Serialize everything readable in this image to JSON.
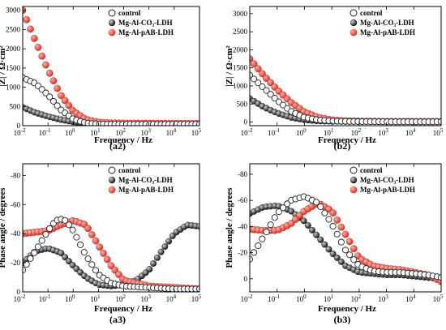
{
  "chart_data": [
    {
      "id": "a2",
      "type": "scatter",
      "panel_label": "(a2)",
      "xlabel": "Frequency / Hz",
      "ylabel": "|Z| / Ω·cm²",
      "x_scale": "log",
      "xlim": [
        0.01,
        100000
      ],
      "ylim": [
        0,
        3100
      ],
      "xticks": [
        {
          "v": 0.01,
          "b": "10",
          "e": "-2"
        },
        {
          "v": 0.1,
          "b": "10",
          "e": "-1"
        },
        {
          "v": 1,
          "b": "10",
          "e": "0"
        },
        {
          "v": 10,
          "b": "10",
          "e": "1"
        },
        {
          "v": 100,
          "b": "10",
          "e": "2"
        },
        {
          "v": 1000,
          "b": "10",
          "e": "3"
        },
        {
          "v": 10000,
          "b": "10",
          "e": "4"
        },
        {
          "v": 100000,
          "b": "10",
          "e": "5"
        }
      ],
      "yticks": [
        {
          "v": 0,
          "l": "0"
        },
        {
          "v": 500,
          "l": "500"
        },
        {
          "v": 1000,
          "l": "1000"
        },
        {
          "v": 1500,
          "l": "1500"
        },
        {
          "v": 2000,
          "l": "2000"
        },
        {
          "v": 2500,
          "l": "2500"
        },
        {
          "v": 3000,
          "l": "3000"
        }
      ],
      "legend": "top-right",
      "series": [
        {
          "name": "control",
          "style": "open",
          "x_log": [
            -2,
            -1.5,
            -1,
            -0.5,
            0,
            0.5,
            1,
            1.5,
            2,
            3,
            4,
            5
          ],
          "y": [
            1250,
            1100,
            800,
            420,
            170,
            70,
            45,
            40,
            38,
            38,
            38,
            38
          ]
        },
        {
          "name": "Mg-Al-CO₃-LDH",
          "style": "black",
          "x_log": [
            -2,
            -1.5,
            -1,
            -0.5,
            0,
            0.5,
            1,
            1.5,
            2,
            3,
            4,
            5
          ],
          "y": [
            480,
            340,
            240,
            160,
            100,
            60,
            45,
            40,
            38,
            38,
            38,
            38
          ]
        },
        {
          "name": "Mg-Al-pAB-LDH",
          "style": "red",
          "x_log": [
            -2,
            -1.5,
            -1,
            -0.5,
            0,
            0.5,
            1,
            1.5,
            2,
            3,
            4,
            5
          ],
          "y": [
            3000,
            2200,
            1450,
            800,
            380,
            160,
            90,
            70,
            65,
            62,
            60,
            60
          ]
        }
      ]
    },
    {
      "id": "b2",
      "type": "scatter",
      "panel_label": "(b2)",
      "xlabel": "Frequency / Hz",
      "ylabel": "|Z| / Ω·cm²",
      "x_scale": "log",
      "xlim": [
        0.01,
        100000
      ],
      "ylim": [
        -100,
        3200
      ],
      "xticks": [
        {
          "v": 0.01,
          "b": "10",
          "e": "-2"
        },
        {
          "v": 0.1,
          "b": "10",
          "e": "-1"
        },
        {
          "v": 1,
          "b": "10",
          "e": "0"
        },
        {
          "v": 10,
          "b": "10",
          "e": "1"
        },
        {
          "v": 100,
          "b": "10",
          "e": "2"
        },
        {
          "v": 1000,
          "b": "10",
          "e": "3"
        },
        {
          "v": 10000,
          "b": "10",
          "e": "4"
        },
        {
          "v": 100000,
          "b": "10",
          "e": "5"
        }
      ],
      "yticks": [
        {
          "v": 0,
          "l": "0"
        },
        {
          "v": 500,
          "l": "500"
        },
        {
          "v": 1000,
          "l": "1000"
        },
        {
          "v": 1500,
          "l": "1500"
        },
        {
          "v": 2000,
          "l": "2000"
        },
        {
          "v": 2500,
          "l": "2500"
        },
        {
          "v": 3000,
          "l": "3000"
        }
      ],
      "legend": "top-right",
      "series": [
        {
          "name": "control",
          "style": "open",
          "x_log": [
            -2,
            -1.5,
            -1,
            -0.5,
            0,
            0.5,
            1,
            1.5,
            2,
            3,
            4,
            5
          ],
          "y": [
            1300,
            950,
            600,
            300,
            130,
            60,
            30,
            20,
            15,
            10,
            10,
            10
          ]
        },
        {
          "name": "Mg-Al-CO₃-LDH",
          "style": "black",
          "x_log": [
            -2,
            -1.5,
            -1,
            -0.5,
            0,
            0.5,
            1,
            1.5,
            2,
            3,
            4,
            5
          ],
          "y": [
            650,
            420,
            250,
            130,
            60,
            30,
            20,
            15,
            12,
            10,
            10,
            10
          ]
        },
        {
          "name": "Mg-Al-pAB-LDH",
          "style": "red",
          "x_log": [
            -2,
            -1.5,
            -1,
            -0.5,
            0,
            0.5,
            1,
            1.5,
            2,
            3,
            4,
            5
          ],
          "y": [
            1750,
            1300,
            900,
            550,
            280,
            130,
            60,
            35,
            25,
            15,
            12,
            12
          ]
        }
      ]
    },
    {
      "id": "a3",
      "type": "scatter",
      "panel_label": "(a3)",
      "xlabel": "Frequency / Hz",
      "ylabel": "Phase angle / degrees",
      "x_scale": "log",
      "xlim": [
        0.01,
        100000
      ],
      "ylim": [
        0,
        -88
      ],
      "xticks": [
        {
          "v": 0.01,
          "b": "10",
          "e": "-2"
        },
        {
          "v": 0.1,
          "b": "10",
          "e": "-1"
        },
        {
          "v": 1,
          "b": "10",
          "e": "0"
        },
        {
          "v": 10,
          "b": "10",
          "e": "1"
        },
        {
          "v": 100,
          "b": "10",
          "e": "2"
        },
        {
          "v": 1000,
          "b": "10",
          "e": "3"
        },
        {
          "v": 10000,
          "b": "10",
          "e": "4"
        },
        {
          "v": 100000,
          "b": "10",
          "e": "5"
        }
      ],
      "yticks": [
        {
          "v": 0,
          "l": "0"
        },
        {
          "v": -20,
          "l": "-20"
        },
        {
          "v": -40,
          "l": "-40"
        },
        {
          "v": -60,
          "l": "-60"
        },
        {
          "v": -80,
          "l": "-80"
        }
      ],
      "legend": "top-right",
      "series": [
        {
          "name": "control",
          "style": "open",
          "x_log": [
            -2,
            -1.5,
            -1,
            -0.7,
            -0.5,
            -0.3,
            0,
            0.5,
            1,
            1.5,
            2,
            3,
            4,
            5
          ],
          "y": [
            -15,
            -28,
            -42,
            -49,
            -50,
            -49,
            -42,
            -25,
            -12,
            -6,
            -4,
            -3,
            -2,
            -2
          ]
        },
        {
          "name": "Mg-Al-CO₃-LDH",
          "style": "black",
          "x_log": [
            -2,
            -1.5,
            -1,
            -0.5,
            0,
            0.5,
            1,
            1.5,
            2,
            2.5,
            3,
            3.5,
            4,
            4.5,
            5
          ],
          "y": [
            -20,
            -28,
            -30,
            -27,
            -18,
            -10,
            -5,
            -4,
            -5,
            -8,
            -15,
            -28,
            -40,
            -46,
            -45
          ]
        },
        {
          "name": "Mg-Al-pAB-LDH",
          "style": "red",
          "x_log": [
            -2,
            -1.5,
            -1,
            -0.5,
            0,
            0.5,
            1,
            1.5,
            2,
            3,
            4,
            5
          ],
          "y": [
            -40,
            -41,
            -42,
            -46,
            -49,
            -46,
            -32,
            -18,
            -8,
            -4,
            -3,
            -2
          ]
        }
      ]
    },
    {
      "id": "b3",
      "type": "scatter",
      "panel_label": "(b3)",
      "xlabel": "Frequency / Hz",
      "ylabel": "Phase angle / degrees",
      "x_scale": "log",
      "xlim": [
        0.01,
        100000
      ],
      "ylim": [
        10,
        -88
      ],
      "xticks": [
        {
          "v": 0.01,
          "b": "10",
          "e": "-2"
        },
        {
          "v": 0.1,
          "b": "10",
          "e": "-1"
        },
        {
          "v": 1,
          "b": "10",
          "e": "0"
        },
        {
          "v": 10,
          "b": "10",
          "e": "1"
        },
        {
          "v": 100,
          "b": "10",
          "e": "2"
        },
        {
          "v": 1000,
          "b": "10",
          "e": "3"
        },
        {
          "v": 10000,
          "b": "10",
          "e": "4"
        },
        {
          "v": 100000,
          "b": "10",
          "e": "5"
        }
      ],
      "yticks": [
        {
          "v": 0,
          "l": "0"
        },
        {
          "v": -20,
          "l": "-20"
        },
        {
          "v": -40,
          "l": "-40"
        },
        {
          "v": -60,
          "l": "-60"
        },
        {
          "v": -80,
          "l": "-80"
        }
      ],
      "legend": "top-right",
      "series": [
        {
          "name": "control",
          "style": "open",
          "x_log": [
            -2,
            -1.5,
            -1,
            -0.5,
            0,
            0.5,
            1,
            1.5,
            2,
            2.5,
            3,
            3.5,
            4,
            4.5,
            5
          ],
          "y": [
            -15,
            -32,
            -50,
            -60,
            -63,
            -58,
            -42,
            -22,
            -10,
            -6,
            -5,
            -5,
            -4,
            -3,
            -1
          ]
        },
        {
          "name": "Mg-Al-CO₃-LDH",
          "style": "black",
          "x_log": [
            -2,
            -1.5,
            -1,
            -0.5,
            0,
            0.5,
            1,
            1.5,
            2,
            2.5,
            3,
            3.5,
            4,
            4.5,
            5
          ],
          "y": [
            -50,
            -55,
            -56,
            -52,
            -44,
            -32,
            -20,
            -10,
            -5,
            -4,
            -3,
            -3,
            -2,
            -1,
            0
          ]
        },
        {
          "name": "Mg-Al-pAB-LDH",
          "style": "red",
          "x_log": [
            -2,
            -1.5,
            -1,
            -0.5,
            0,
            0.5,
            1,
            1.5,
            2,
            2.5,
            3,
            3.5,
            4,
            4.5,
            5
          ],
          "y": [
            -38,
            -37,
            -37,
            -42,
            -52,
            -58,
            -52,
            -34,
            -16,
            -10,
            -8,
            -7,
            -5,
            -3,
            2
          ]
        }
      ]
    }
  ],
  "colors": {
    "red": "#e02a24",
    "black": "#111111",
    "open": "#ffffff",
    "text": "#000000"
  }
}
